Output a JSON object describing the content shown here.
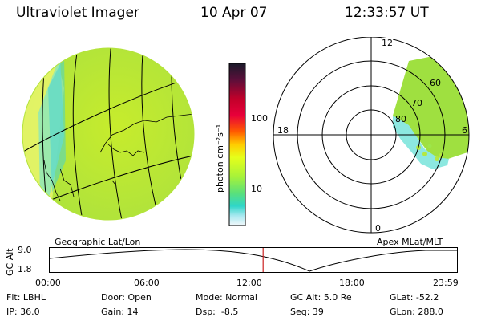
{
  "header": {
    "instrument": "Ultraviolet Imager",
    "date": "10 Apr 07",
    "time": "12:33:57 UT"
  },
  "colorbar": {
    "unit_label": "photon cm⁻²s⁻¹",
    "ticks": [
      "100",
      "10"
    ],
    "colors": [
      "#1a1a2a",
      "#5a0f3a",
      "#c2002a",
      "#e8003a",
      "#ff5a00",
      "#ff9a00",
      "#ffe300",
      "#e0ff1a",
      "#a6f23a",
      "#5ae07a",
      "#2fd6c8",
      "#a8e8f0",
      "#eaf6fa"
    ]
  },
  "left_panel": {
    "label": "Geographic Lat/Lon"
  },
  "right_panel": {
    "label": "Apex MLat/MLT",
    "mlt_labels": {
      "top": "12",
      "left": "18",
      "right": "6",
      "bottom": "0"
    },
    "lat_labels": [
      "60",
      "70",
      "80"
    ]
  },
  "timeline": {
    "y_axis_label": "GC Alt",
    "y_ticks": [
      "9.0",
      "1.8"
    ],
    "x_ticks": [
      "00:00",
      "06:00",
      "12:00",
      "18:00",
      "23:59"
    ],
    "marker_color": "#cc2222",
    "marker_time_fraction": 0.524
  },
  "footer": {
    "flt": "Flt: LBHL",
    "ip": "IP: 36.0",
    "door": "Door: Open",
    "gain": "Gain: 14",
    "mode": "Mode: Normal",
    "dsp": "Dsp:  -8.5",
    "gcalt": "GC Alt: 5.0 Re",
    "seq": "Seq: 39",
    "glat": "GLat: -52.2",
    "glon": "GLon: 288.0"
  }
}
